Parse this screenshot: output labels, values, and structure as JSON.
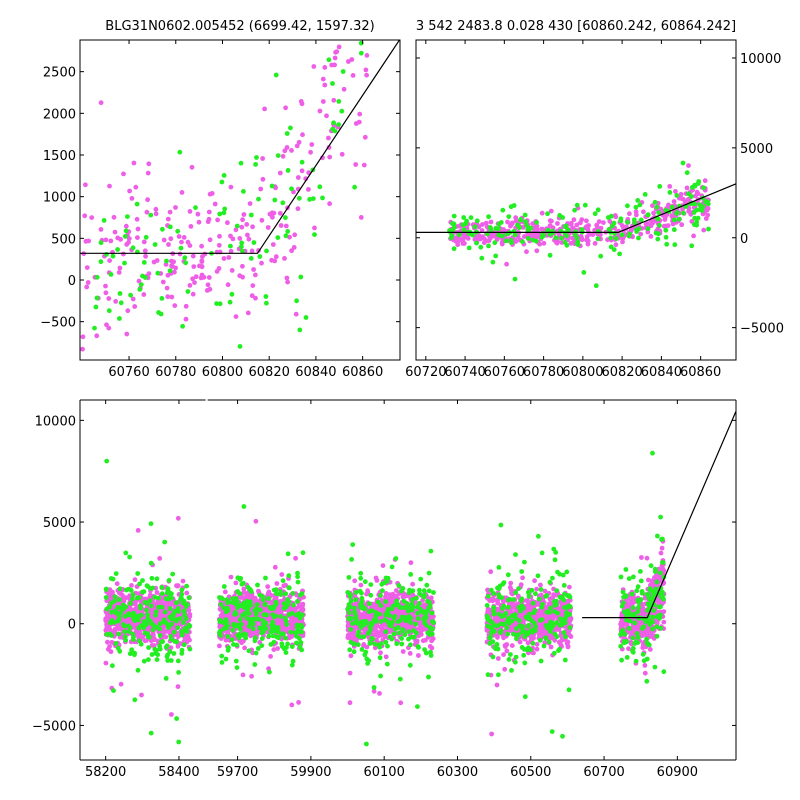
{
  "colors": {
    "magenta": "#ee5ee6",
    "green": "#22ee22",
    "model": "#000000"
  },
  "chart_data": [
    {
      "id": "tl",
      "type": "scatter",
      "title": "BLG31N0602.005452 (6699.42, 1597.32)",
      "xlim": [
        60739,
        60876
      ],
      "ylim": [
        -960,
        2880
      ],
      "xticks": [
        60760,
        60780,
        60800,
        60820,
        60840,
        60860
      ],
      "yticks": [
        -500,
        0,
        500,
        1000,
        1500,
        2000,
        2500
      ],
      "y_side": "left",
      "model_line": [
        [
          60739,
          320
        ],
        [
          60815,
          320
        ],
        [
          60876,
          2890
        ]
      ],
      "series": [
        {
          "name": "magenta",
          "gen": {
            "segments": [
              [
                60740,
                60862,
                280
              ]
            ],
            "base": 320,
            "t0": 60815,
            "slope": 50,
            "scatter": 430,
            "seed": 11
          }
        },
        {
          "name": "green",
          "gen": {
            "segments": [
              [
                60745,
                60862,
                120
              ]
            ],
            "base": 320,
            "t0": 60815,
            "slope": 50,
            "scatter": 500,
            "seed": 23
          }
        }
      ]
    },
    {
      "id": "tr",
      "type": "scatter",
      "title": "3 542 2483.8 0.028 430 [60860.242, 60864.242]",
      "xlim": [
        60715,
        60878
      ],
      "ylim": [
        -6800,
        11000
      ],
      "xticks": [
        60720,
        60740,
        60760,
        60780,
        60800,
        60820,
        60840,
        60860
      ],
      "yticks": [
        -5000,
        0,
        5000,
        10000
      ],
      "y_side": "right",
      "model_line": [
        [
          60715,
          300
        ],
        [
          60818,
          300
        ],
        [
          60878,
          3000
        ]
      ],
      "series": [
        {
          "name": "magenta",
          "gen": {
            "segments": [
              [
                60732,
                60864,
                480
              ]
            ],
            "base": 300,
            "t0": 60818,
            "slope": 40,
            "scatter": 380,
            "seed": 31
          }
        },
        {
          "name": "green",
          "gen": {
            "segments": [
              [
                60732,
                60864,
                200
              ]
            ],
            "base": 300,
            "t0": 60818,
            "slope": 40,
            "scatter": 650,
            "seed": 43
          }
        }
      ]
    },
    {
      "id": "bot",
      "type": "scatter",
      "title": "",
      "xlim": [
        58130,
        61060
      ],
      "ylim": [
        -6700,
        11000
      ],
      "xticks": [
        58200,
        58400,
        59700,
        59900,
        60100,
        60300,
        60500,
        60700,
        60900
      ],
      "tick_labels": [
        "58200",
        "58400",
        "59700",
        "59900",
        "60100",
        "60300",
        "60500",
        "60700",
        "60900"
      ],
      "yticks": [
        -5000,
        0,
        5000,
        10000
      ],
      "y_side": "left",
      "axis_break": [
        58470,
        59610
      ],
      "model_line": [
        [
          60640,
          300
        ],
        [
          60818,
          300
        ],
        [
          61060,
          10450
        ]
      ],
      "series": [
        {
          "name": "magenta",
          "gen": {
            "segments": [
              [
                58200,
                58430,
                750
              ],
              [
                59650,
                59880,
                750
              ],
              [
                60000,
                60235,
                750
              ],
              [
                60380,
                60610,
                700
              ],
              [
                60745,
                60864,
                420
              ]
            ],
            "base": 300,
            "t0": 60818,
            "slope": 40,
            "scatter": 600,
            "seed": 57
          }
        },
        {
          "name": "green",
          "gen": {
            "segments": [
              [
                58200,
                58430,
                230
              ],
              [
                59650,
                59880,
                230
              ],
              [
                60000,
                60235,
                230
              ],
              [
                60380,
                60610,
                210
              ],
              [
                60745,
                60864,
                130
              ]
            ],
            "base": 300,
            "t0": 60818,
            "slope": 40,
            "scatter": 1100,
            "seed": 71
          }
        }
      ]
    }
  ]
}
